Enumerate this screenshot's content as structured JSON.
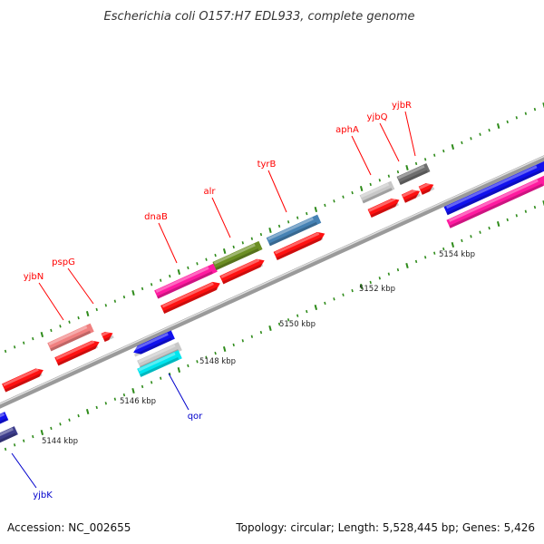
{
  "header": {
    "title": "Escherichia coli O157:H7 EDL933, complete genome"
  },
  "footer": {
    "accession": "Accession: NC_002655",
    "topology": "Topology: circular; Length: 5,528,445 bp; Genes: 5,426"
  },
  "colors": {
    "label_red": "#ff0000",
    "label_blue": "#0000cc",
    "tick_green": "#2e8b1a",
    "backbone": "#888888",
    "red": "#ff1111",
    "pink": "#ff1aa0",
    "olive": "#6b8e23",
    "steel": "#4682b4",
    "silver": "#c8c8c8",
    "gray": "#6e6e6e",
    "salmon": "#f08080",
    "blue": "#1111ee",
    "cyan": "#00e5ee",
    "navy": "#3d3d8c"
  },
  "tick_labels": [
    "5144 kbp",
    "5146 kbp",
    "5148 kbp",
    "5150 kbp",
    "5152 kbp",
    "5154 kbp"
  ],
  "gene_labels": {
    "yjbN": "yjbN",
    "pspG": "pspG",
    "dnaB": "dnaB",
    "alr": "alr",
    "tyrB": "tyrB",
    "aphA": "aphA",
    "yjbQ": "yjbQ",
    "yjbR": "yjbR",
    "qor": "qor",
    "yjbK": "yjbK"
  }
}
